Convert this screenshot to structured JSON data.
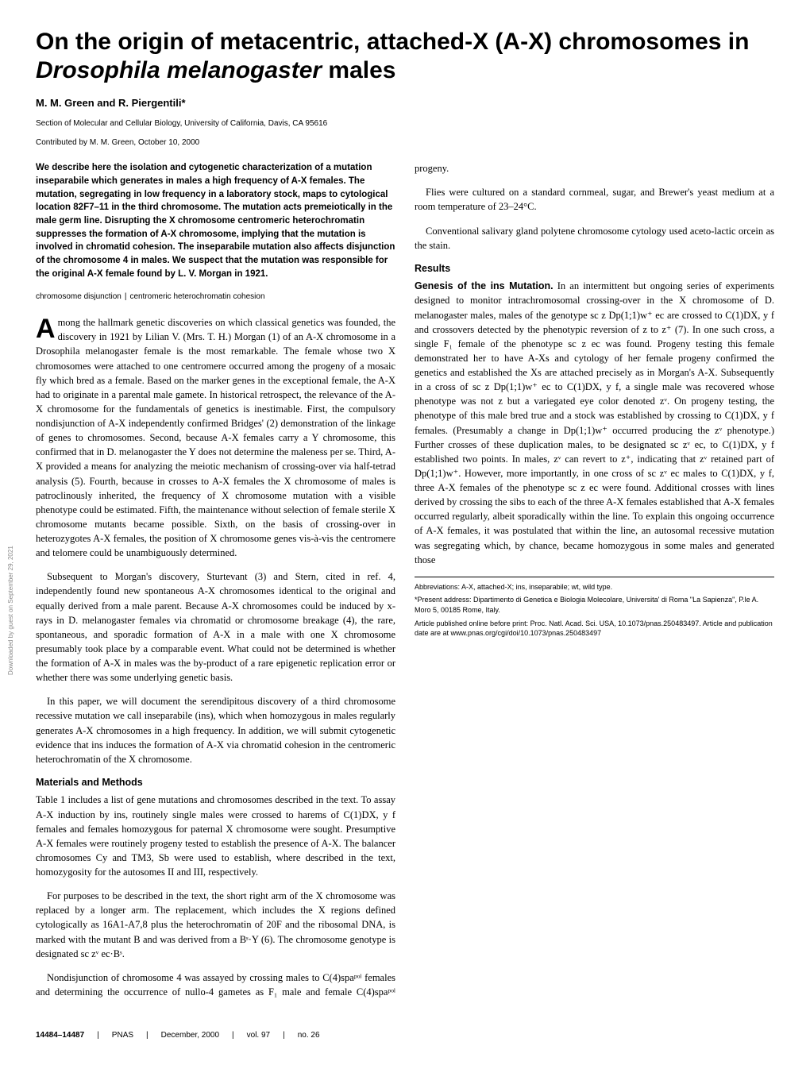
{
  "title_plain": "On the origin of metacentric, attached-X (A-X) chromosomes in ",
  "title_species": "Drosophila melanogaster",
  "title_suffix": " males",
  "authors": "M. M. Green and R. Piergentili*",
  "affiliation": "Section of Molecular and Cellular Biology, University of California, Davis, CA 95616",
  "contributed": "Contributed by M. M. Green, October 10, 2000",
  "abstract": "We describe here the isolation and cytogenetic characterization of a mutation inseparabile which generates in males a high frequency of A-X females. The mutation, segregating in low frequency in a laboratory stock, maps to cytological location 82F7–11 in the third chromosome. The mutation acts premeiotically in the male germ line. Disrupting the X chromosome centromeric heterochromatin suppresses the formation of A-X chromosome, implying that the mutation is involved in chromatid cohesion. The inseparabile mutation also affects disjunction of the chromosome 4 in males. We suspect that the mutation was responsible for the original A-X female found by L. V. Morgan in 1921.",
  "keywords_1": "chromosome disjunction",
  "keywords_2": "centromeric heterochromatin cohesion",
  "dropcap_letter": "A",
  "para_dropcap_rest": "mong the hallmark genetic discoveries on which classical genetics was founded, the discovery in 1921 by Lilian V. (Mrs. T. H.) Morgan (1) of an A-X chromosome in a Drosophila melanogaster female is the most remarkable. The female whose two X chromosomes were attached to one centromere occurred among the progeny of a mosaic fly which bred as a female. Based on the marker genes in the exceptional female, the A-X had to originate in a parental male gamete. In historical retrospect, the relevance of the A-X chromosome for the fundamentals of genetics is inestimable. First, the compulsory nondisjunction of A-X independently confirmed Bridges' (2) demonstration of the linkage of genes to chromosomes. Second, because A-X females carry a Y chromosome, this confirmed that in D. melanogaster the Y does not determine the maleness per se. Third, A-X provided a means for analyzing the meiotic mechanism of crossing-over via half-tetrad analysis (5). Fourth, because in crosses to A-X females the X chromosome of males is patroclinously inherited, the frequency of X chromosome mutation with a visible phenotype could be estimated. Fifth, the maintenance without selection of female sterile X chromosome mutants became possible. Sixth, on the basis of crossing-over in heterozygotes A-X females, the position of X chromosome genes vis-à-vis the centromere and telomere could be unambiguously determined.",
  "para_2": "Subsequent to Morgan's discovery, Sturtevant (3) and Stern, cited in ref. 4, independently found new spontaneous A-X chromosomes identical to the original and equally derived from a male parent. Because A-X chromosomes could be induced by x-rays in D. melanogaster females via chromatid or chromosome breakage (4), the rare, spontaneous, and sporadic formation of A-X in a male with one X chromosome presumably took place by a comparable event. What could not be determined is whether the formation of A-X in males was the by-product of a rare epigenetic replication error or whether there was some underlying genetic basis.",
  "para_3": "In this paper, we will document the serendipitous discovery of a third chromosome recessive mutation we call inseparabile (ins), which when homozygous in males regularly generates A-X chromosomes in a high frequency. In addition, we will submit cytogenetic evidence that ins induces the formation of A-X via chromatid cohesion in the centromeric heterochromatin of the X chromosome.",
  "heading_methods": "Materials and Methods",
  "methods_para_1": "Table 1 includes a list of gene mutations and chromosomes described in the text. To assay A-X induction by ins, routinely single males were crossed to harems of C(1)DX, y f females and females homozygous for paternal X chromosome were sought. Presumptive A-X females were routinely progeny tested to establish the presence of A-X. The balancer chromosomes Cy and TM3, Sb were used to establish, where described in the text, homozygosity for the autosomes II and III, respectively.",
  "methods_para_2": "For purposes to be described in the text, the short right arm of the X chromosome was replaced by a longer arm. The replacement, which includes the X regions defined cytologically as 16A1-A7,8 plus the heterochromatin of 20F and the ribosomal DNA, is marked with the mutant B and was derived from a Bˢ·Y (6). The chromosome genotype is designated sc zᵛ ec·Bˢ.",
  "methods_para_3": "Nondisjunction of chromosome 4 was assayed by crossing males to C(4)spaᵖᵒˡ females and determining the occurrence of nullo-4 gametes as F₁ male and female C(4)spaᵖᵒˡ progeny.",
  "methods_para_4": "Flies were cultured on a standard cornmeal, sugar, and Brewer's yeast medium at a room temperature of 23–24°C.",
  "methods_para_5": "Conventional salivary gland polytene chromosome cytology used aceto-lactic orcein as the stain.",
  "heading_results": "Results",
  "results_runin": "Genesis of the ins Mutation.",
  "results_para_1": " In an intermittent but ongoing series of experiments designed to monitor intrachromosomal crossing-over in the X chromosome of D. melanogaster males, males of the genotype sc z Dp(1;1)w⁺ ec are crossed to C(1)DX, y f and crossovers detected by the phenotypic reversion of z to z⁺ (7). In one such cross, a single F₁ female of the phenotype sc z ec was found. Progeny testing this female demonstrated her to have A-Xs and cytology of her female progeny confirmed the genetics and established the Xs are attached precisely as in Morgan's A-X. Subsequently in a cross of sc z Dp(1;1)w⁺ ec to C(1)DX, y f, a single male was recovered whose phenotype was not z but a variegated eye color denoted zᵛ. On progeny testing, the phenotype of this male bred true and a stock was established by crossing to C(1)DX, y f females. (Presumably a change in Dp(1;1)w⁺ occurred producing the zᵛ phenotype.) Further crosses of these duplication males, to be designated sc zᵛ ec, to C(1)DX, y f established two points. In males, zᵛ can revert to z⁺, indicating that zᵛ retained part of Dp(1;1)w⁺. However, more importantly, in one cross of sc zᵛ ec males to C(1)DX, y f, three A-X females of the phenotype sc z ec were found. Additional crosses with lines derived by crossing the sibs to each of the three A-X females established that A-X females occurred regularly, albeit sporadically within the line. To explain this ongoing occurrence of A-X females, it was postulated that within the line, an autosomal recessive mutation was segregating which, by chance, became homozygous in some males and generated those",
  "foot_abbrev": "Abbreviations: A-X, attached-X; ins, inseparabile; wt, wild type.",
  "foot_address": "*Present address: Dipartimento di Genetica e Biologia Molecolare, Universita' di Roma \"La Sapienza\", P.le A. Moro 5, 00185 Rome, Italy.",
  "foot_article": "Article published online before print: Proc. Natl. Acad. Sci. USA, 10.1073/pnas.250483497. Article and publication date are at www.pnas.org/cgi/doi/10.1073/pnas.250483497",
  "footer_pages": "14484–14487",
  "footer_pnas": "PNAS",
  "footer_date": "December, 2000",
  "footer_vol": "vol. 97",
  "footer_no": "no. 26",
  "sidebar": "Downloaded by guest on September 29, 2021"
}
